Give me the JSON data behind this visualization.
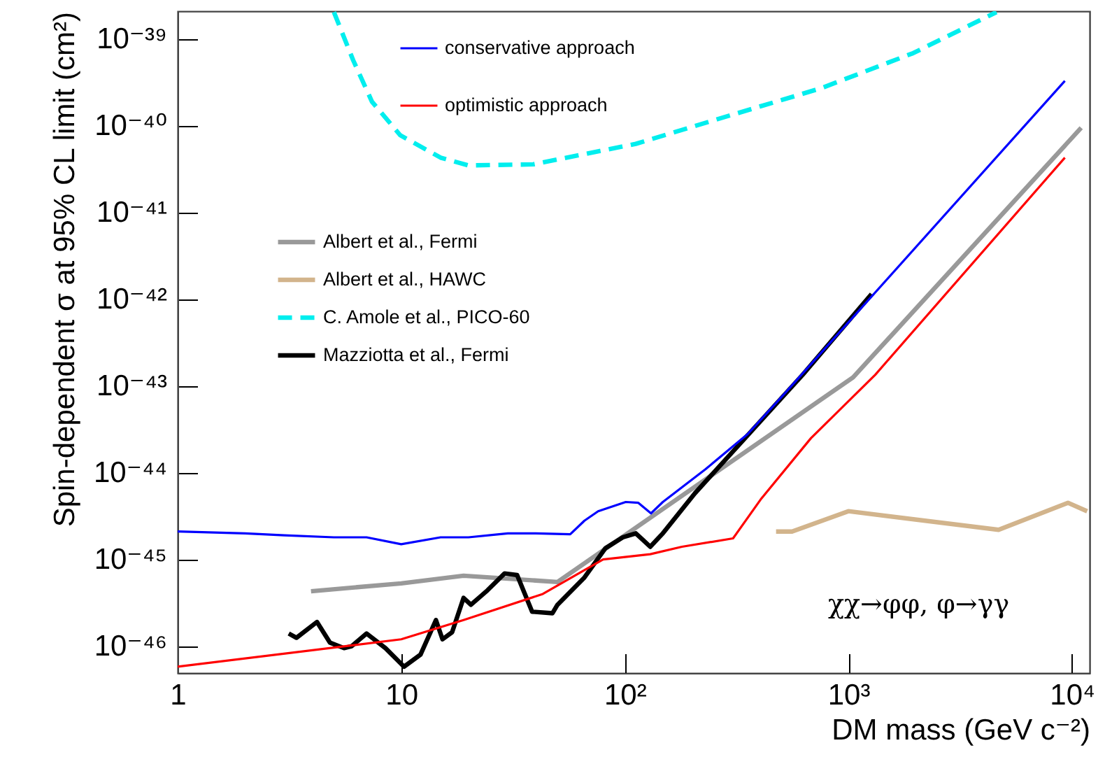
{
  "chart_data": {
    "type": "line",
    "xlabel": "DM mass (GeV c⁻²)",
    "ylabel": "Spin-dependent σ at 95% CL limit (cm²)",
    "log": "xy",
    "legend": "top left",
    "marker": "none",
    "xlim": [
      1,
      12000
    ],
    "ylim": [
      4.9e-47,
      2.1e-39
    ],
    "xticks": [
      1,
      10,
      {
        "value": 100,
        "label": "10²"
      },
      {
        "value": 1000,
        "label": "10³"
      },
      {
        "value": 10000,
        "label": "10⁴"
      }
    ],
    "yticks": [
      {
        "value": 1e-46,
        "label": "10⁻⁴⁶"
      },
      {
        "value": 1e-45,
        "label": "10⁻⁴⁵"
      },
      {
        "value": 1e-44,
        "label": "10⁻⁴⁴"
      },
      {
        "value": 1e-43,
        "label": "10⁻⁴³"
      },
      {
        "value": 1e-42,
        "label": "10⁻⁴²"
      },
      {
        "value": 1e-41,
        "label": "10⁻⁴¹"
      },
      {
        "value": 1e-40,
        "label": "10⁻⁴⁰"
      },
      {
        "value": 1e-39,
        "label": "10⁻³⁹"
      }
    ],
    "annotations": [
      "χχ→φφ,  φ→γγ"
    ],
    "series": [
      {
        "name": "conservative approach",
        "color": "#0000ff",
        "x": [
          1,
          2,
          3,
          5,
          7,
          10,
          15,
          20,
          30,
          40,
          57,
          66,
          76,
          101,
          115,
          131,
          148,
          230,
          355,
          510,
          9300
        ],
        "values": [
          2.1e-45,
          2e-45,
          1.9e-45,
          1.8e-45,
          1.8e-45,
          1.5e-45,
          1.8e-45,
          1.8e-45,
          2e-45,
          2e-45,
          1.95e-45,
          2.8e-45,
          3.6e-45,
          4.6e-45,
          4.5e-45,
          3.4e-45,
          4.6e-45,
          1.1e-44,
          2.8e-44,
          7.8e-44,
          3.3e-40
        ]
      },
      {
        "name": "optimistic approach",
        "color": "#ff0000",
        "x": [
          1,
          10,
          19,
          43,
          80,
          130,
          180,
          305,
          405,
          680,
          1320,
          9300
        ],
        "values": [
          5.8e-47,
          1.2e-46,
          2e-46,
          4e-46,
          1e-45,
          1.15e-45,
          1.4e-45,
          1.75e-45,
          4.9e-45,
          2.5e-44,
          1.35e-43,
          4.3e-41
        ]
      },
      {
        "name": "Albert et al., Fermi",
        "color": "#999999",
        "x": [
          3.95,
          10,
          19,
          50,
          1050,
          11000
        ],
        "values": [
          4.3e-46,
          5.3e-46,
          6.5e-46,
          5.5e-46,
          1.26e-43,
          9.5e-41
        ]
      },
      {
        "name": "Albert et al., HAWC",
        "color": "#d2b48c",
        "x": [
          475,
          560,
          1000,
          4700,
          9600,
          11700
        ],
        "values": [
          2.1e-45,
          2.1e-45,
          3.6e-45,
          2.2e-45,
          4.5e-45,
          3.6e-45
        ]
      },
      {
        "name": "C. Amole et al., PICO-60",
        "color": "#00eeee",
        "line_style": "dashed",
        "x": [
          5.0,
          6.1,
          7.4,
          9.9,
          15,
          20,
          39,
          112,
          290,
          750,
          1950,
          4600
        ],
        "values": [
          2.05e-39,
          5.7e-40,
          1.9e-40,
          7.8e-41,
          4.3e-41,
          3.5e-41,
          3.6e-41,
          6.2e-41,
          1.3e-40,
          2.7e-40,
          6.9e-40,
          2.05e-39
        ]
      },
      {
        "name": "Mazziotta et al., Fermi",
        "color": "#000000",
        "x": [
          3.14,
          3.4,
          4.2,
          4.8,
          5.55,
          6.0,
          7.0,
          8.5,
          10.3,
          12.2,
          14.3,
          15.3,
          16.9,
          19,
          20.5,
          24.3,
          29,
          33,
          38.5,
          47.5,
          50,
          66,
          82,
          98,
          112,
          120,
          130,
          148,
          206,
          625,
          1270
        ],
        "values": [
          1.4e-46,
          1.25e-46,
          1.9e-46,
          1.1e-46,
          9.5e-47,
          1e-46,
          1.4e-46,
          9.5e-47,
          5.8e-47,
          8e-47,
          2e-46,
          1.2e-46,
          1.45e-46,
          3.6e-46,
          3e-46,
          4.4e-46,
          6.9e-46,
          6.6e-46,
          2.5e-46,
          2.4e-46,
          3e-46,
          6.2e-46,
          1.35e-45,
          1.8e-45,
          2e-45,
          1.7e-45,
          1.4e-45,
          2e-45,
          5.8e-45,
          1.35e-43,
          1.15e-42
        ]
      }
    ]
  }
}
